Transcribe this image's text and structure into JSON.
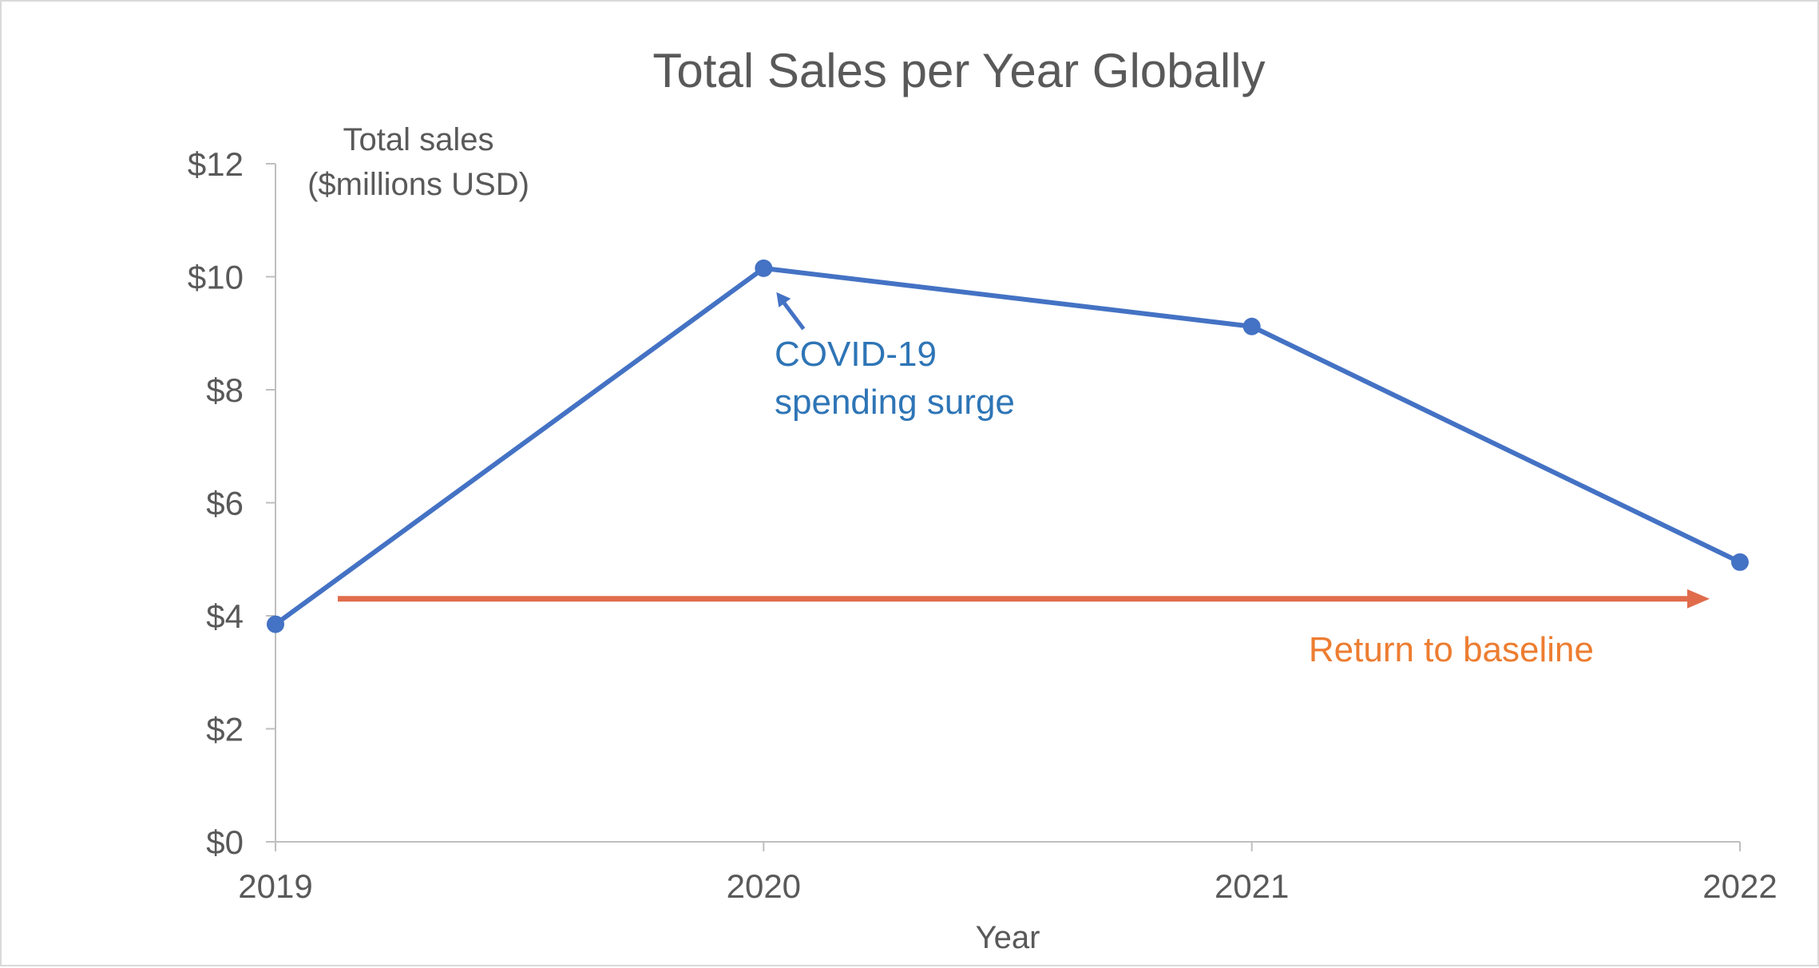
{
  "chart_data": {
    "type": "line",
    "title": "Total Sales per Year Globally",
    "xlabel": "Year",
    "ylabel_line1": "Total sales",
    "ylabel_line2": "($millions USD)",
    "x": [
      "2019",
      "2020",
      "2021",
      "2022"
    ],
    "series": [
      {
        "values": [
          3.85,
          10.15,
          9.12,
          4.95
        ]
      }
    ],
    "ylim": [
      0,
      12
    ],
    "yticks": [
      0,
      2,
      4,
      6,
      8,
      10,
      12
    ],
    "ytick_labels": [
      "$0",
      "$2",
      "$4",
      "$6",
      "$8",
      "$10",
      "$12"
    ],
    "grid": false,
    "legend": "none",
    "annotations": {
      "covid_line1": "COVID-19",
      "covid_line2": "spending surge",
      "baseline": "Return to baseline",
      "baseline_arrow_y": 4.3
    },
    "colors": {
      "series": "#4472c4",
      "covid_text": "#2e75b6",
      "baseline_arrow": "#e06c4c",
      "baseline_text": "#ed7d31",
      "text": "#595959",
      "axis": "#bfbfbf"
    }
  }
}
